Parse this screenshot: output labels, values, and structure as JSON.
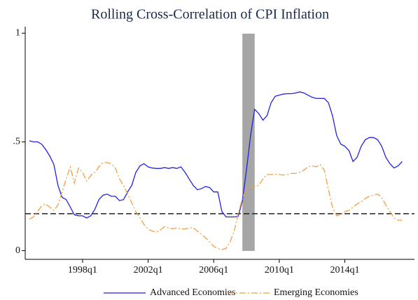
{
  "chart_data": {
    "type": "line",
    "title": "Rolling Cross-Correlation of CPI Inflation",
    "x": [
      1994.75,
      1995,
      1995.25,
      1995.5,
      1995.75,
      1996,
      1996.25,
      1996.5,
      1996.75,
      1997,
      1997.25,
      1997.5,
      1997.75,
      1998,
      1998.25,
      1998.5,
      1998.75,
      1999,
      1999.25,
      1999.5,
      1999.75,
      2000,
      2000.25,
      2000.5,
      2000.75,
      2001,
      2001.25,
      2001.5,
      2001.75,
      2002,
      2002.25,
      2002.5,
      2002.75,
      2003,
      2003.25,
      2003.5,
      2003.75,
      2004,
      2004.25,
      2004.5,
      2004.75,
      2005,
      2005.25,
      2005.5,
      2005.75,
      2006,
      2006.25,
      2006.5,
      2006.75,
      2007,
      2007.25,
      2007.5,
      2007.75,
      2008,
      2008.25,
      2008.5,
      2008.75,
      2009,
      2009.25,
      2009.5,
      2009.75,
      2010,
      2010.25,
      2010.5,
      2010.75,
      2011,
      2011.25,
      2011.5,
      2011.75,
      2012,
      2012.25,
      2012.5,
      2012.75,
      2013,
      2013.25,
      2013.5,
      2013.75,
      2014,
      2014.25,
      2014.5,
      2014.75,
      2015,
      2015.25,
      2015.5,
      2015.75,
      2016,
      2016.25,
      2016.5,
      2016.75,
      2017,
      2017.25,
      2017.5
    ],
    "series": [
      {
        "name": "Advanced Economies",
        "color": "#2222e6",
        "dash": false,
        "values": [
          0.505,
          0.5,
          0.5,
          0.49,
          0.465,
          0.435,
          0.395,
          0.3,
          0.245,
          0.235,
          0.2,
          0.165,
          0.16,
          0.16,
          0.15,
          0.16,
          0.19,
          0.235,
          0.255,
          0.26,
          0.25,
          0.25,
          0.23,
          0.235,
          0.27,
          0.3,
          0.36,
          0.39,
          0.4,
          0.385,
          0.38,
          0.378,
          0.378,
          0.382,
          0.378,
          0.382,
          0.378,
          0.385,
          0.36,
          0.33,
          0.3,
          0.28,
          0.285,
          0.295,
          0.29,
          0.27,
          0.27,
          0.18,
          0.155,
          0.155,
          0.155,
          0.158,
          0.23,
          0.37,
          0.53,
          0.65,
          0.63,
          0.6,
          0.62,
          0.68,
          0.71,
          0.715,
          0.72,
          0.722,
          0.722,
          0.725,
          0.73,
          0.725,
          0.715,
          0.705,
          0.7,
          0.7,
          0.7,
          0.68,
          0.62,
          0.53,
          0.49,
          0.48,
          0.46,
          0.41,
          0.43,
          0.48,
          0.51,
          0.52,
          0.52,
          0.51,
          0.48,
          0.43,
          0.4,
          0.38,
          0.39,
          0.41
        ]
      },
      {
        "name": "Emerging Economies",
        "color": "#f0a040",
        "dash": true,
        "values": [
          0.145,
          0.155,
          0.18,
          0.205,
          0.215,
          0.2,
          0.185,
          0.21,
          0.27,
          0.33,
          0.385,
          0.31,
          0.38,
          0.36,
          0.32,
          0.345,
          0.36,
          0.385,
          0.405,
          0.405,
          0.4,
          0.38,
          0.33,
          0.3,
          0.26,
          0.22,
          0.18,
          0.15,
          0.12,
          0.1,
          0.09,
          0.085,
          0.095,
          0.11,
          0.105,
          0.1,
          0.105,
          0.1,
          0.1,
          0.105,
          0.105,
          0.09,
          0.075,
          0.06,
          0.04,
          0.02,
          0.01,
          0.005,
          0.01,
          0.04,
          0.09,
          0.17,
          0.24,
          0.29,
          0.29,
          0.295,
          0.3,
          0.33,
          0.35,
          0.35,
          0.352,
          0.35,
          0.348,
          0.35,
          0.355,
          0.355,
          0.36,
          0.37,
          0.385,
          0.39,
          0.385,
          0.395,
          0.37,
          0.28,
          0.2,
          0.16,
          0.165,
          0.18,
          0.185,
          0.2,
          0.215,
          0.225,
          0.24,
          0.25,
          0.255,
          0.26,
          0.245,
          0.21,
          0.18,
          0.15,
          0.14,
          0.14
        ]
      }
    ],
    "hline": 0.17,
    "shade": [
      2007.75,
      2008.5
    ],
    "xlim": [
      1994.5,
      2018.25
    ],
    "xticks": [
      {
        "value": 1998,
        "label": "1998q1"
      },
      {
        "value": 2002,
        "label": "2002q1"
      },
      {
        "value": 2006,
        "label": "2006q1"
      },
      {
        "value": 2010,
        "label": "2010q1"
      },
      {
        "value": 2014,
        "label": "2014q1"
      }
    ],
    "ylim": [
      -0.04,
      1.03
    ],
    "yticks": [
      0,
      {
        "value": 0.5,
        "label": ".5"
      },
      1
    ],
    "grid": false
  }
}
